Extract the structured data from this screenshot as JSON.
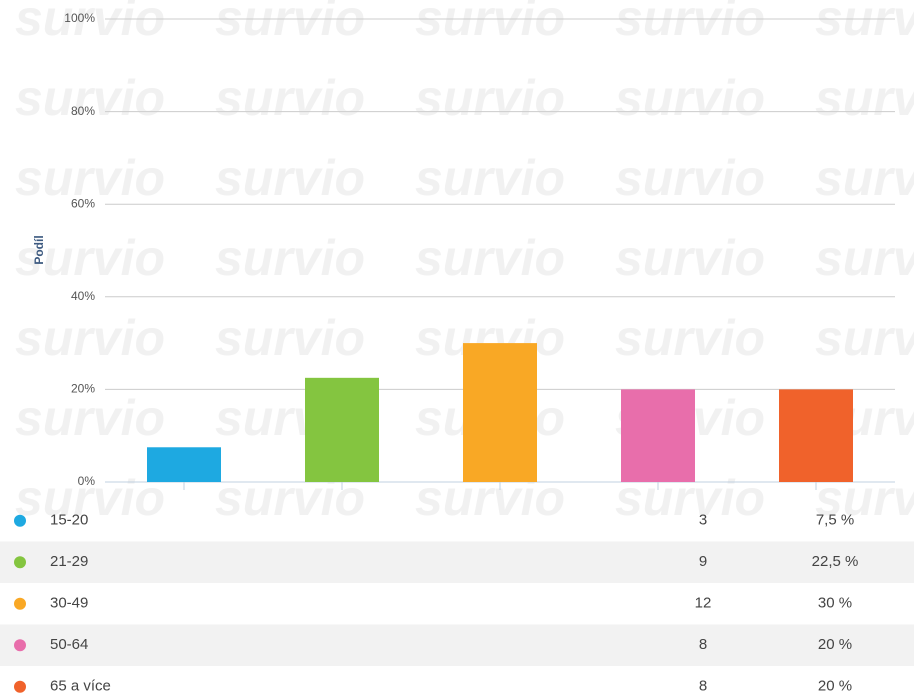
{
  "chart_data": {
    "type": "bar",
    "watermark": "survio",
    "ylabel": "Podíl",
    "categories": [
      "15-20",
      "21-29",
      "30-49",
      "50-64",
      "65 a více"
    ],
    "values": [
      7.5,
      22.5,
      30,
      20,
      20
    ],
    "value_labels": [
      "7,5 %",
      "22,5 %",
      "30 %",
      "20 %",
      "20 %"
    ],
    "counts": [
      3,
      9,
      12,
      8,
      8
    ],
    "colors": [
      "#1ea9e1",
      "#84c540",
      "#f9a825",
      "#e86eab",
      "#f0622b"
    ],
    "ylim": [
      0,
      100
    ],
    "yticks": [
      {
        "value": 0,
        "label": "0%"
      },
      {
        "value": 20,
        "label": "20%"
      },
      {
        "value": 40,
        "label": "40%"
      },
      {
        "value": 60,
        "label": "60%"
      },
      {
        "value": 80,
        "label": "80%"
      },
      {
        "value": 100,
        "label": "100%"
      }
    ],
    "grid": true
  }
}
